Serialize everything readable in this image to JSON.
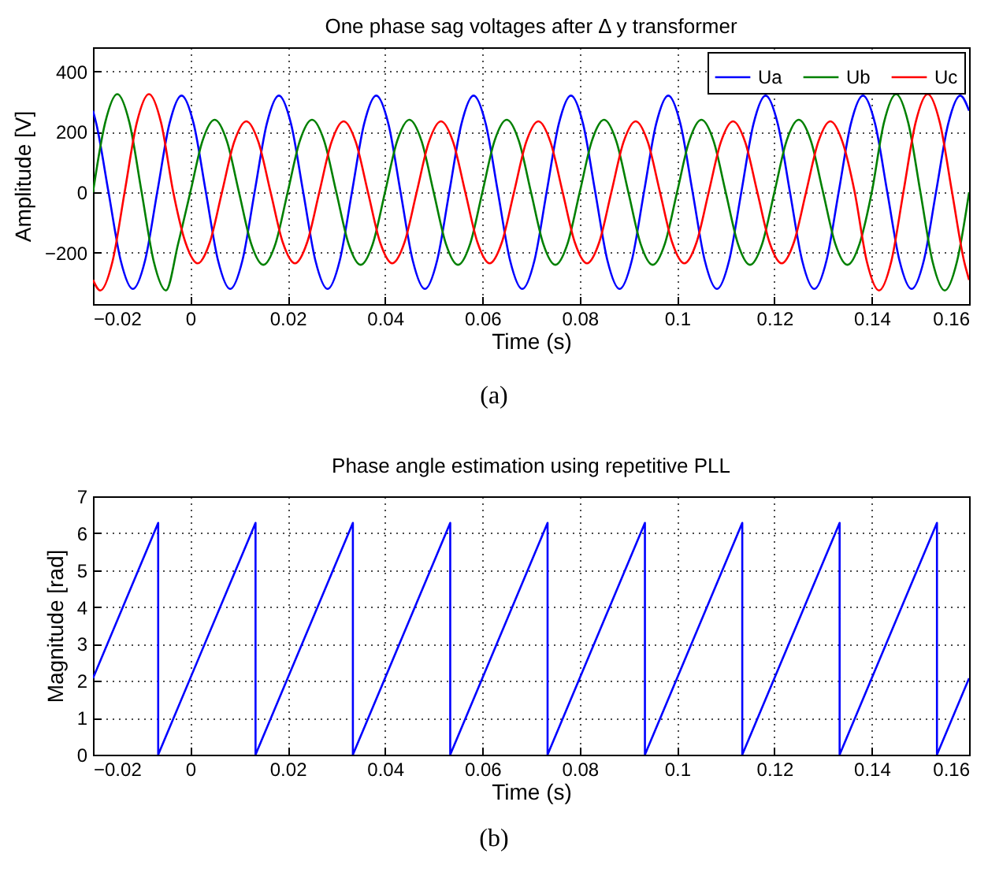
{
  "chart_data": [
    {
      "type": "line",
      "title": "One phase sag voltages after Δ y transformer",
      "xlabel": "Time (s)",
      "ylabel": "Amplitude [V]",
      "xlim": [
        -0.02,
        0.16
      ],
      "xticks": [
        {
          "value": -0.02,
          "label": "−0.02"
        },
        0,
        0.02,
        0.04,
        0.06,
        0.08,
        0.1,
        0.12,
        0.14,
        0.16
      ],
      "ylim": [
        -370,
        480
      ],
      "yticks": [
        {
          "value": -200,
          "label": "−200"
        },
        0,
        200,
        400
      ],
      "grid": true,
      "legend": "top right",
      "line_style": "solid",
      "annotations": [
        "(a)"
      ],
      "series": [
        {
          "name": "Ua",
          "color": "#0000ff",
          "x": [
            -0.02,
            -0.0193,
            -0.0168,
            -0.0143,
            -0.0118,
            -0.0093,
            -0.0068,
            -0.0043,
            -0.0018,
            0.0007,
            0.0032,
            0.0057,
            0.0082,
            0.0107,
            0.0132,
            0.0157,
            0.0182,
            0.0207,
            0.0232,
            0.0257,
            0.0282,
            0.0307,
            0.0332,
            0.0357,
            0.0382,
            0.0407,
            0.0432,
            0.0457,
            0.0482,
            0.0507,
            0.0532,
            0.0557,
            0.0582,
            0.0607,
            0.0632,
            0.0657,
            0.0682,
            0.0707,
            0.0732,
            0.0757,
            0.0782,
            0.0807,
            0.0832,
            0.0857,
            0.0882,
            0.0907,
            0.0932,
            0.0957,
            0.0982,
            0.1007,
            0.1032,
            0.1057,
            0.1082,
            0.1107,
            0.1132,
            0.1157,
            0.1182,
            0.1207,
            0.1232,
            0.1257,
            0.1282,
            0.1307,
            0.1332,
            0.1357,
            0.1382,
            0.1407,
            0.1432,
            0.1457,
            0.1482,
            0.1507,
            0.1532,
            0.1557,
            0.1582,
            0.16
          ],
          "values": [
            270,
            226,
            0,
            -226,
            -320,
            -226,
            0,
            226,
            320,
            226,
            0,
            -226,
            -320,
            -226,
            0,
            226,
            320,
            226,
            0,
            -226,
            -320,
            -226,
            0,
            226,
            320,
            226,
            0,
            -226,
            -320,
            -226,
            0,
            226,
            320,
            226,
            0,
            -226,
            -320,
            -226,
            0,
            226,
            320,
            226,
            0,
            -226,
            -320,
            -226,
            0,
            226,
            320,
            226,
            0,
            -226,
            -320,
            -226,
            0,
            226,
            320,
            226,
            0,
            -226,
            -320,
            -226,
            0,
            226,
            320,
            226,
            0,
            -226,
            -320,
            -226,
            0,
            226,
            320,
            270
          ]
        },
        {
          "name": "Ub",
          "color": "#008000",
          "x": [
            -0.02,
            -0.0175,
            -0.015,
            -0.0125,
            -0.01,
            -0.0075,
            -0.005,
            -0.0025,
            0,
            0.0025,
            0.005,
            0.0075,
            0.01,
            0.0125,
            0.015,
            0.0175,
            0.02,
            0.0225,
            0.025,
            0.0275,
            0.03,
            0.0325,
            0.035,
            0.0375,
            0.04,
            0.0425,
            0.045,
            0.0475,
            0.05,
            0.0525,
            0.055,
            0.0575,
            0.06,
            0.0625,
            0.065,
            0.0675,
            0.07,
            0.0725,
            0.075,
            0.0775,
            0.08,
            0.0825,
            0.085,
            0.0875,
            0.09,
            0.0925,
            0.095,
            0.0975,
            0.1,
            0.1025,
            0.105,
            0.1075,
            0.11,
            0.1125,
            0.115,
            0.1175,
            0.12,
            0.1225,
            0.125,
            0.1275,
            0.13,
            0.1325,
            0.135,
            0.1375,
            0.14,
            0.1425,
            0.145,
            0.1475,
            0.15,
            0.1525,
            0.155,
            0.1575,
            0.16
          ],
          "values": [
            0,
            230,
            325,
            230,
            0,
            -230,
            -325,
            -170,
            0,
            170,
            240,
            170,
            0,
            -170,
            -240,
            -170,
            0,
            170,
            240,
            170,
            0,
            -170,
            -240,
            -170,
            0,
            170,
            240,
            170,
            0,
            -170,
            -240,
            -170,
            0,
            170,
            240,
            170,
            0,
            -170,
            -240,
            -170,
            0,
            170,
            240,
            170,
            0,
            -170,
            -240,
            -170,
            0,
            170,
            240,
            170,
            0,
            -170,
            -240,
            -170,
            0,
            170,
            240,
            170,
            0,
            -170,
            -240,
            -170,
            0,
            230,
            325,
            230,
            0,
            -230,
            -325,
            -230,
            0
          ]
        },
        {
          "name": "Uc",
          "color": "#ff0000",
          "x": [
            -0.02,
            -0.0185,
            -0.016,
            -0.0135,
            -0.011,
            -0.0085,
            -0.006,
            -0.0035,
            -0.001,
            0.0015,
            0.004,
            0.0065,
            0.009,
            0.0115,
            0.014,
            0.0165,
            0.019,
            0.0215,
            0.024,
            0.0265,
            0.029,
            0.0315,
            0.034,
            0.0365,
            0.039,
            0.0415,
            0.044,
            0.0465,
            0.049,
            0.0515,
            0.054,
            0.0565,
            0.059,
            0.0615,
            0.064,
            0.0665,
            0.069,
            0.0715,
            0.074,
            0.0765,
            0.079,
            0.0815,
            0.084,
            0.0865,
            0.089,
            0.0915,
            0.094,
            0.0965,
            0.099,
            0.1015,
            0.104,
            0.1065,
            0.109,
            0.1115,
            0.114,
            0.1165,
            0.119,
            0.1215,
            0.124,
            0.1265,
            0.129,
            0.1315,
            0.134,
            0.1365,
            0.139,
            0.1415,
            0.144,
            0.1465,
            0.149,
            0.1515,
            0.154,
            0.1565,
            0.159,
            0.16
          ],
          "values": [
            -290,
            -325,
            -230,
            0,
            230,
            325,
            230,
            0,
            -166,
            -235,
            -166,
            0,
            166,
            235,
            166,
            0,
            -166,
            -235,
            -166,
            0,
            166,
            235,
            166,
            0,
            -166,
            -235,
            -166,
            0,
            166,
            235,
            166,
            0,
            -166,
            -235,
            -166,
            0,
            166,
            235,
            166,
            0,
            -166,
            -235,
            -166,
            0,
            166,
            235,
            166,
            0,
            -166,
            -235,
            -166,
            0,
            166,
            235,
            166,
            0,
            -166,
            -235,
            -166,
            0,
            166,
            235,
            166,
            0,
            -230,
            -325,
            -230,
            0,
            230,
            325,
            230,
            0,
            -230,
            -290
          ]
        }
      ]
    },
    {
      "type": "line",
      "title": "Phase angle estimation using repetitive PLL",
      "xlabel": "Time (s)",
      "ylabel": "Magnitude [rad]",
      "xlim": [
        -0.02,
        0.16
      ],
      "xticks": [
        {
          "value": -0.02,
          "label": "−0.02"
        },
        0,
        0.02,
        0.04,
        0.06,
        0.08,
        0.1,
        0.12,
        0.14,
        0.16
      ],
      "ylim": [
        0,
        7
      ],
      "yticks": [
        0,
        1,
        2,
        3,
        4,
        5,
        6,
        7
      ],
      "grid": true,
      "line_style": "solid",
      "annotations": [
        "(b)"
      ],
      "series": [
        {
          "color": "#0000ff",
          "x": [
            -0.02,
            -0.0066,
            -0.0066,
            0.0134,
            0.0134,
            0.0334,
            0.0334,
            0.0534,
            0.0534,
            0.0734,
            0.0734,
            0.0934,
            0.0934,
            0.1134,
            0.1134,
            0.1334,
            0.1334,
            0.1534,
            0.1534,
            0.16
          ],
          "values": [
            2.07,
            6.28,
            0,
            6.28,
            0,
            6.28,
            0,
            6.28,
            0,
            6.28,
            0,
            6.28,
            0,
            6.28,
            0,
            6.28,
            0,
            6.28,
            0,
            2.07
          ]
        }
      ]
    }
  ]
}
